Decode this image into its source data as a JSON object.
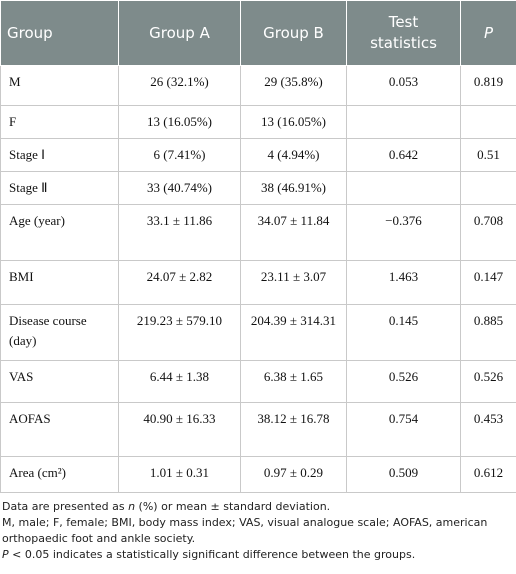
{
  "table": {
    "header": [
      "Group",
      "Group A",
      "Group B",
      "Test statistics",
      "P"
    ],
    "rows": [
      [
        "M",
        "26 (32.1%)",
        "29 (35.8%)",
        "0.053",
        "0.819"
      ],
      [
        "F",
        "13 (16.05%)",
        "13 (16.05%)",
        null,
        null
      ],
      [
        "Stage Ⅰ",
        "6 (7.41%)",
        "4 (4.94%)",
        "0.642",
        "0.51"
      ],
      [
        "Stage Ⅱ",
        "33 (40.74%)",
        "38 (46.91%)",
        null,
        null
      ],
      [
        "Age (year)",
        "33.1 ± 11.86",
        "34.07 ± 11.84",
        "−0.376",
        "0.708"
      ],
      [
        "BMI",
        "24.07 ± 2.82",
        "23.11 ± 3.07",
        "1.463",
        "0.147"
      ],
      [
        "Disease course (day)",
        "219.23 ± 579.10",
        "204.39 ± 314.31",
        "0.145",
        "0.885"
      ],
      [
        "VAS",
        "6.44 ± 1.38",
        "6.38 ± 1.65",
        "0.526",
        "0.526"
      ],
      [
        "AOFAS",
        "40.90 ± 16.33",
        "38.12 ± 16.78",
        "0.754",
        "0.453"
      ],
      [
        "Area (cm²)",
        "1.01 ± 0.31",
        "0.97 ± 0.29",
        "0.509",
        "0.612"
      ]
    ]
  },
  "notes": [
    [
      "Data are presented as ",
      "n",
      " (%) or mean ± standard deviation."
    ],
    [
      "M, male; F, female; BMI, body mass index; VAS, visual analogue scale; AOFAS, american orthopaedic foot and ankle society."
    ],
    [
      "P",
      " < 0.05 indicates a statistically significant difference between the groups."
    ]
  ]
}
